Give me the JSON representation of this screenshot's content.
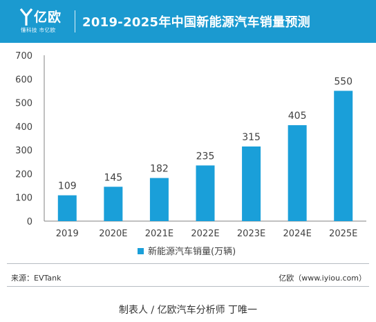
{
  "header": {
    "logo_text": "亿欧",
    "logo_tagline": "懂科技 市亿欧",
    "title": "2019-2025年中国新能源汽车销量预测"
  },
  "colors": {
    "header_bg": "#1b9ad0",
    "bar": "#1a9fd9",
    "axis_text": "#404040"
  },
  "chart_data": {
    "type": "bar",
    "categories": [
      "2019",
      "2020E",
      "2021E",
      "2022E",
      "2023E",
      "2024E",
      "2025E"
    ],
    "series": [
      {
        "name": "新能源汽车销量(万辆)",
        "values": [
          109,
          145,
          182,
          235,
          315,
          405,
          550
        ]
      }
    ],
    "data_labels": [
      "109",
      "145",
      "182",
      "235",
      "315",
      "405",
      "550"
    ],
    "ylim": [
      0,
      700
    ],
    "yticks": [
      0,
      100,
      200,
      300,
      400,
      500,
      600,
      700
    ],
    "grid": false,
    "legend_position": "bottom-center"
  },
  "footer": {
    "source": "来源：EVTank",
    "site": "亿欧（www.iyiou.com）",
    "author": "制表人 /  亿欧汽车分析师 丁唯一"
  }
}
